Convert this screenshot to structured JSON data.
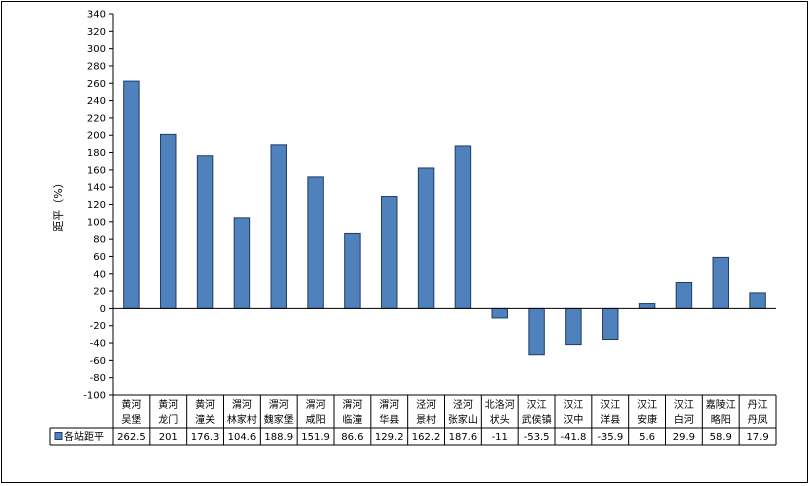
{
  "chart_data": {
    "type": "bar",
    "title": "",
    "xlabel": "",
    "ylabel": "距平（%）",
    "ylim": [
      -100,
      340
    ],
    "ytick_step": 20,
    "grid": false,
    "legend": "data-table-left",
    "color": "#4f81bd",
    "categories": [
      [
        "黄河",
        "吴堡"
      ],
      [
        "黄河",
        "龙门"
      ],
      [
        "黄河",
        "潼关"
      ],
      [
        "渭河",
        "林家村"
      ],
      [
        "渭河",
        "魏家堡"
      ],
      [
        "渭河",
        "咸阳"
      ],
      [
        "渭河",
        "临潼"
      ],
      [
        "渭河",
        "华县"
      ],
      [
        "泾河",
        "景村"
      ],
      [
        "泾河",
        "张家山"
      ],
      [
        "北洛河",
        "状头"
      ],
      [
        "汉江",
        "武侯镇"
      ],
      [
        "汉江",
        "汉中"
      ],
      [
        "汉江",
        "洋县"
      ],
      [
        "汉江",
        "安康"
      ],
      [
        "汉江",
        "白河"
      ],
      [
        "嘉陵江",
        "略阳"
      ],
      [
        "丹江",
        "丹凤"
      ]
    ],
    "series": [
      {
        "name": "各站距平",
        "values": [
          262.5,
          201,
          176.3,
          104.6,
          188.9,
          151.9,
          86.6,
          129.2,
          162.2,
          187.6,
          -11,
          -53.5,
          -41.8,
          -35.9,
          5.6,
          29.9,
          58.9,
          17.9
        ],
        "labels": [
          "262.5",
          "201",
          "176.3",
          "104.6",
          "188.9",
          "151.9",
          "86.6",
          "129.2",
          "162.2",
          "187.6",
          "-11",
          "-53.5",
          "-41.8",
          "-35.9",
          "5.6",
          "29.9",
          "58.9",
          "17.9"
        ]
      }
    ]
  }
}
